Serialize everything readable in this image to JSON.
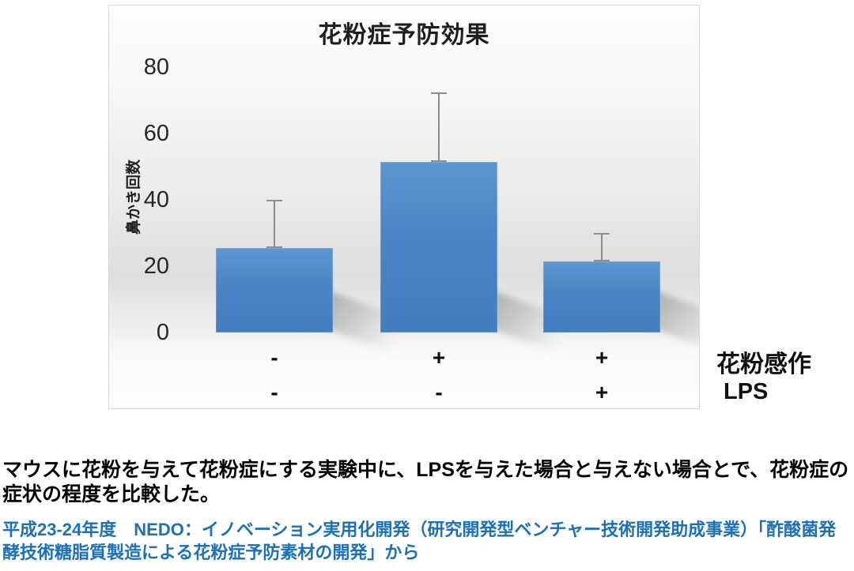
{
  "chart": {
    "title": "花粉症予防効果",
    "y_axis_label": "鼻かき回数",
    "x_right_labels": {
      "row1": "花粉感作",
      "row2": "LPS"
    },
    "bar_color": "#4C86C6",
    "error_bar_color": "#8C8C8C",
    "source_text_color": "#1C70B8"
  },
  "chart_data": {
    "type": "bar",
    "title": "花粉症予防効果",
    "xlabel": "",
    "ylabel": "鼻かき回数",
    "ylim": [
      0,
      80
    ],
    "yticks": [
      0,
      20,
      40,
      60,
      80
    ],
    "categories": [
      "花粉感作- / LPS-",
      "花粉感作+ / LPS-",
      "花粉感作+ / LPS+"
    ],
    "values": [
      25.5,
      51.5,
      21.5
    ],
    "error_upper": [
      14.5,
      21,
      8.5
    ],
    "x_condition_rows": [
      {
        "label": "花粉感作",
        "values": [
          "-",
          "+",
          "+"
        ]
      },
      {
        "label": "LPS",
        "values": [
          "-",
          "-",
          "+"
        ]
      }
    ],
    "grid": false,
    "legend": false,
    "bar_color": "#4C86C6"
  },
  "caption": "マウスに花粉を与えて花粉症にする実験中に、LPSを与えた場合と与えない場合とで、花粉症の症状の程度を比較した。",
  "source": "平成23-24年度　NEDO：イノベーション実用化開発（研究開発型ベンチャー技術開発助成事業）「酢酸菌発酵技術糖脂質製造による花粉症予防素材の開発」から"
}
